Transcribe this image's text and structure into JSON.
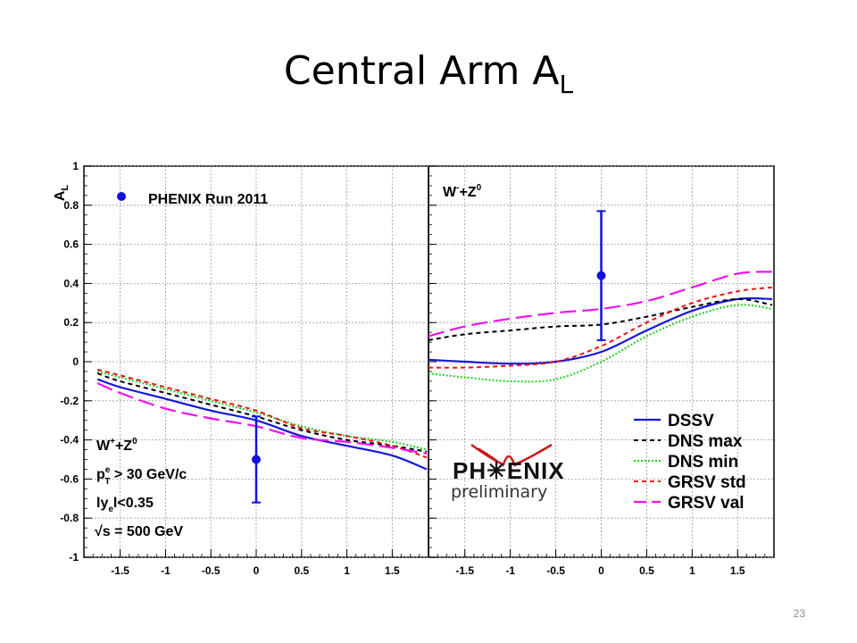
{
  "slide": {
    "title_main": "Central Arm A",
    "title_sub": "L",
    "page_number": "23"
  },
  "colors": {
    "DSSV": "#1515dd",
    "DNS max": "#000000",
    "DNS min": "#22cc22",
    "GRSV std": "#ee1111",
    "GRSV val": "#ee11ee",
    "data": "#1010e0"
  },
  "logo": {
    "main": "PH✳ENIX",
    "sub": "preliminary"
  },
  "chart_data": [
    {
      "type": "line",
      "panel": "left",
      "ylabel": "A_L",
      "ylim": [
        -1,
        1
      ],
      "xlim": [
        -1.9,
        1.9
      ],
      "x_ticks": [
        "-1.5",
        "-1",
        "-0.5",
        "0",
        "0.5",
        "1",
        "1.5"
      ],
      "y_ticks": [
        "1",
        "0.8",
        "0.6",
        "0.4",
        "0.2",
        "0",
        "-0.2",
        "-0.4",
        "-0.6",
        "-0.8",
        "-1"
      ],
      "legend_title": "PHENIX Run 2011",
      "annotations": [
        "W⁺+Z⁰",
        "p_T^e > 30 GeV/c",
        "|y_e|<0.35",
        "√s = 500 GeV"
      ],
      "data_point": {
        "x": 0.0,
        "y": -0.5,
        "err_low": 0.22,
        "err_high": 0.22
      },
      "series": [
        {
          "name": "DSSV",
          "style": "solid",
          "x": [
            -1.75,
            -1.5,
            -1.0,
            -0.5,
            0.0,
            0.5,
            1.0,
            1.5,
            1.88
          ],
          "y": [
            -0.09,
            -0.13,
            -0.19,
            -0.25,
            -0.3,
            -0.38,
            -0.43,
            -0.48,
            -0.55
          ]
        },
        {
          "name": "DNS max",
          "style": "dashed",
          "x": [
            -1.75,
            -1.5,
            -1.0,
            -0.5,
            0.0,
            0.5,
            1.0,
            1.5,
            1.88
          ],
          "y": [
            -0.06,
            -0.1,
            -0.16,
            -0.22,
            -0.28,
            -0.35,
            -0.4,
            -0.43,
            -0.46
          ]
        },
        {
          "name": "DNS min",
          "style": "dotted",
          "x": [
            -1.75,
            -1.5,
            -1.0,
            -0.5,
            0.0,
            0.5,
            1.0,
            1.5,
            1.88
          ],
          "y": [
            -0.05,
            -0.08,
            -0.14,
            -0.2,
            -0.26,
            -0.33,
            -0.38,
            -0.41,
            -0.45
          ]
        },
        {
          "name": "GRSV std",
          "style": "dashed",
          "x": [
            -1.75,
            -1.5,
            -1.0,
            -0.5,
            0.0,
            0.5,
            1.0,
            1.5,
            1.88
          ],
          "y": [
            -0.04,
            -0.07,
            -0.13,
            -0.19,
            -0.25,
            -0.34,
            -0.38,
            -0.43,
            -0.49
          ]
        },
        {
          "name": "GRSV val",
          "style": "longdash",
          "x": [
            -1.75,
            -1.5,
            -1.0,
            -0.5,
            0.0,
            0.5,
            1.0,
            1.5,
            1.88
          ],
          "y": [
            -0.11,
            -0.16,
            -0.24,
            -0.29,
            -0.33,
            -0.39,
            -0.41,
            -0.44,
            -0.47
          ]
        }
      ]
    },
    {
      "type": "line",
      "panel": "right",
      "ylim": [
        -1,
        1
      ],
      "xlim": [
        -1.9,
        1.9
      ],
      "x_ticks": [
        "-1.5",
        "-1",
        "-0.5",
        "0",
        "0.5",
        "1",
        "1.5"
      ],
      "annotations": [
        "W⁻+Z⁰"
      ],
      "legend_placement": "bottom-right",
      "data_point": {
        "x": 0.0,
        "y": 0.44,
        "err_low": 0.33,
        "err_high": 0.33
      },
      "series": [
        {
          "name": "DSSV",
          "style": "solid",
          "x": [
            -1.9,
            -1.5,
            -1.0,
            -0.5,
            0.0,
            0.5,
            1.0,
            1.5,
            1.88
          ],
          "y": [
            0.01,
            0.0,
            -0.01,
            0.0,
            0.05,
            0.16,
            0.26,
            0.32,
            0.32
          ]
        },
        {
          "name": "DNS max",
          "style": "dashed",
          "x": [
            -1.9,
            -1.5,
            -1.0,
            -0.5,
            0.0,
            0.5,
            1.0,
            1.5,
            1.88
          ],
          "y": [
            0.11,
            0.14,
            0.16,
            0.18,
            0.19,
            0.23,
            0.28,
            0.32,
            0.29
          ]
        },
        {
          "name": "DNS min",
          "style": "dotted",
          "x": [
            -1.9,
            -1.5,
            -1.0,
            -0.5,
            0.0,
            0.5,
            1.0,
            1.5,
            1.88
          ],
          "y": [
            -0.06,
            -0.08,
            -0.1,
            -0.09,
            0.0,
            0.13,
            0.23,
            0.29,
            0.27
          ]
        },
        {
          "name": "GRSV std",
          "style": "dashed",
          "x": [
            -1.9,
            -1.5,
            -1.0,
            -0.5,
            0.0,
            0.5,
            1.0,
            1.5,
            1.88
          ],
          "y": [
            -0.03,
            -0.03,
            -0.02,
            0.0,
            0.08,
            0.2,
            0.3,
            0.36,
            0.38
          ]
        },
        {
          "name": "GRSV val",
          "style": "longdash",
          "x": [
            -1.9,
            -1.5,
            -1.0,
            -0.5,
            0.0,
            0.5,
            1.0,
            1.5,
            1.88
          ],
          "y": [
            0.13,
            0.18,
            0.22,
            0.25,
            0.27,
            0.31,
            0.38,
            0.45,
            0.46
          ]
        }
      ]
    }
  ]
}
